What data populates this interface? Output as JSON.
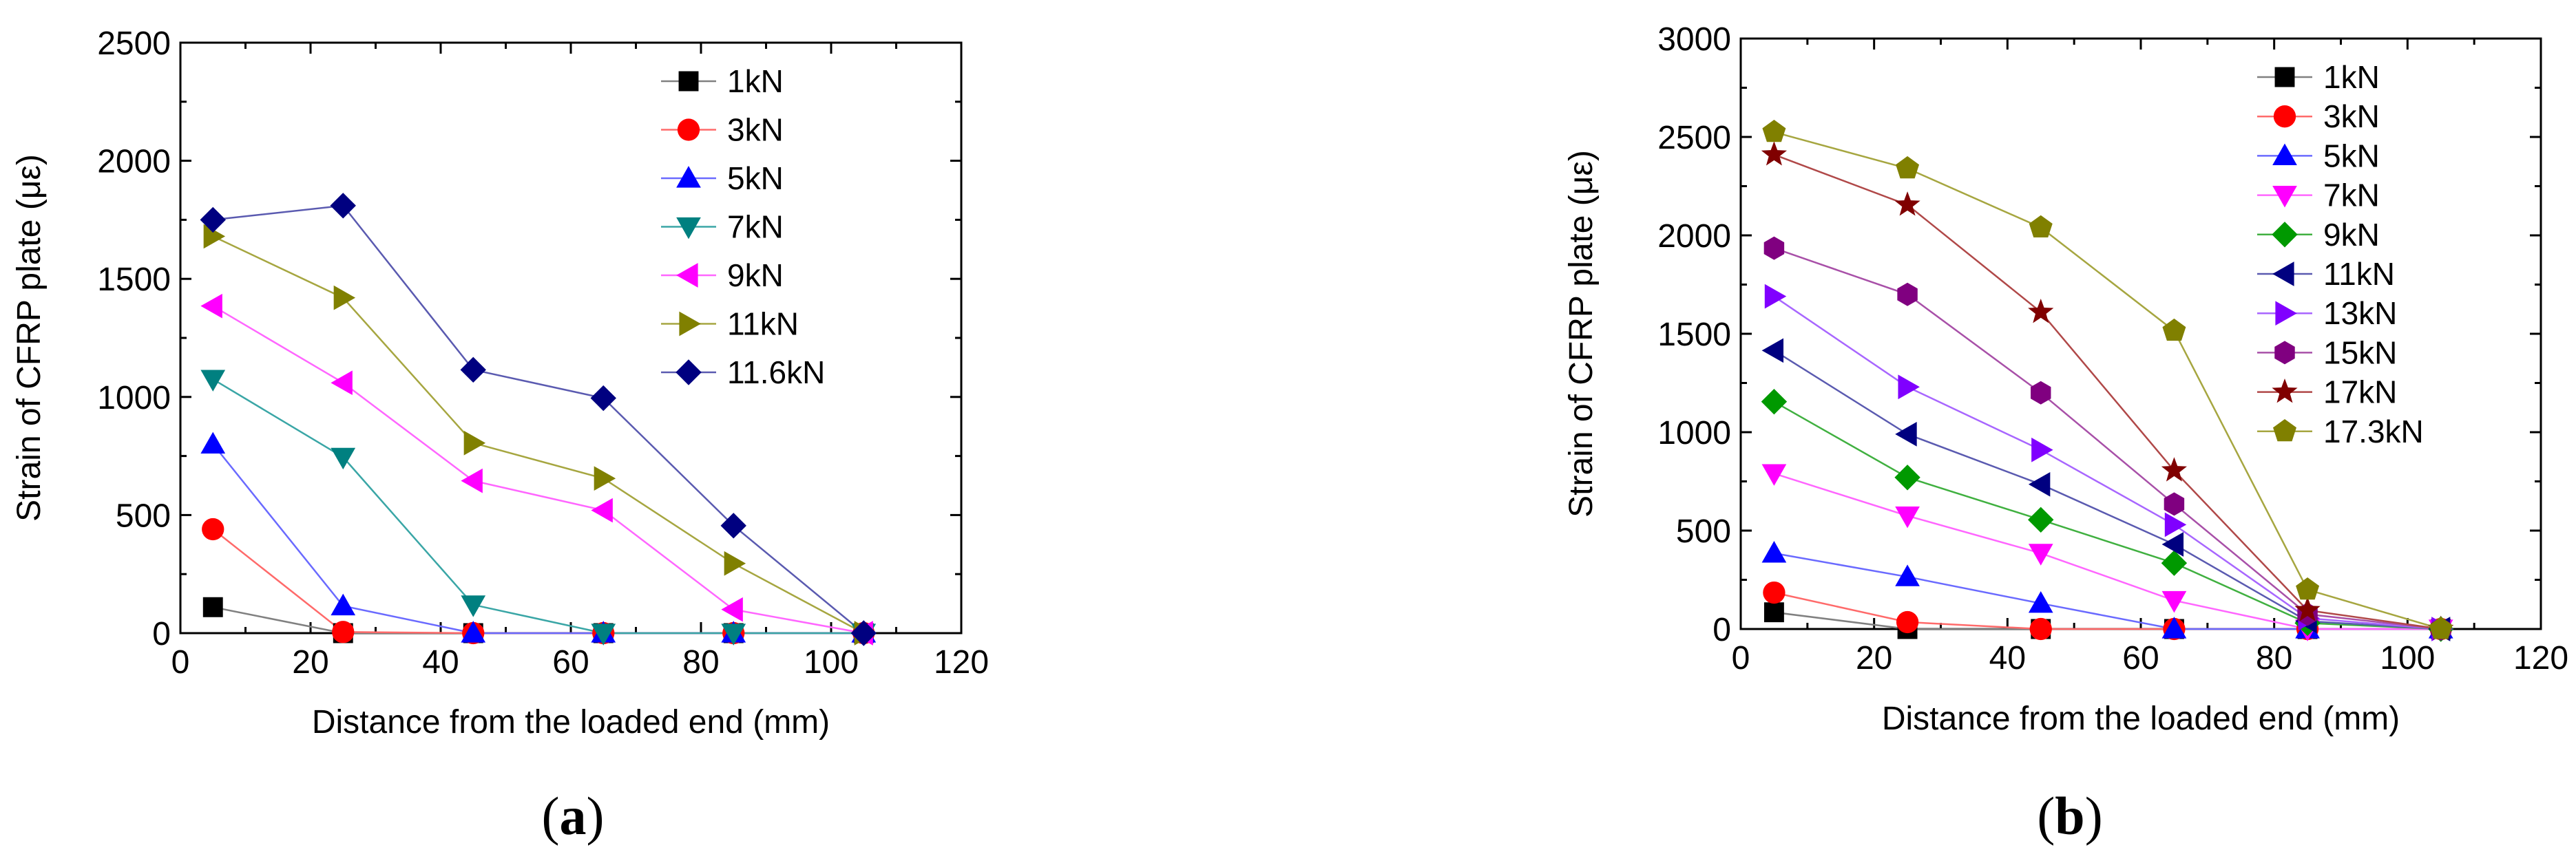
{
  "chart_data": [
    {
      "type": "line",
      "panel_label": "(a)",
      "panel_label_open": "(",
      "panel_label_letter": "a",
      "panel_label_close": ")",
      "xlabel": "Distance from the loaded end (mm)",
      "ylabel": "Strain of CFRP plate (με)",
      "xlim": [
        0,
        120
      ],
      "ylim": [
        0,
        2500
      ],
      "xticks": [
        0,
        20,
        40,
        60,
        80,
        100,
        120
      ],
      "yticks": [
        0,
        500,
        1000,
        1500,
        2000,
        2500
      ],
      "grid": false,
      "legend_position": "top-right",
      "x": [
        5,
        25,
        45,
        65,
        85,
        105
      ],
      "series": [
        {
          "name": "1kN",
          "marker": "square",
          "color": "#000000",
          "line_color": "#808080",
          "values": [
            110,
            0,
            0,
            0,
            0,
            0
          ]
        },
        {
          "name": "3kN",
          "marker": "circle",
          "color": "#ff0000",
          "line_color": "#ff6a6a",
          "values": [
            440,
            5,
            0,
            0,
            0,
            0
          ]
        },
        {
          "name": "5kN",
          "marker": "triangle-up",
          "color": "#0000ff",
          "line_color": "#6a6aff",
          "values": [
            800,
            115,
            0,
            0,
            0,
            0
          ]
        },
        {
          "name": "7kN",
          "marker": "triangle-down",
          "color": "#008080",
          "line_color": "#3aa6a6",
          "values": [
            1075,
            745,
            120,
            0,
            0,
            0
          ]
        },
        {
          "name": "9kN",
          "marker": "triangle-left",
          "color": "#ff00ff",
          "line_color": "#ff66ff",
          "values": [
            1385,
            1060,
            645,
            520,
            100,
            0
          ]
        },
        {
          "name": "11kN",
          "marker": "triangle-right",
          "color": "#808000",
          "line_color": "#a6a640",
          "values": [
            1680,
            1420,
            805,
            655,
            295,
            0
          ]
        },
        {
          "name": "11.6kN",
          "marker": "diamond",
          "color": "#000080",
          "line_color": "#5a5ab0",
          "values": [
            1750,
            1810,
            1115,
            995,
            455,
            0
          ]
        }
      ]
    },
    {
      "type": "line",
      "panel_label": "(b)",
      "panel_label_open": "(",
      "panel_label_letter": "b",
      "panel_label_close": ")",
      "xlabel": "Distance from the loaded end (mm)",
      "ylabel": "Strain of CFRP plate (με)",
      "xlim": [
        0,
        120
      ],
      "ylim": [
        0,
        3000
      ],
      "xticks": [
        0,
        20,
        40,
        60,
        80,
        100,
        120
      ],
      "yticks": [
        0,
        500,
        1000,
        1500,
        2000,
        2500,
        3000
      ],
      "grid": false,
      "legend_position": "top-right",
      "x": [
        5,
        25,
        45,
        65,
        85,
        105
      ],
      "series": [
        {
          "name": "1kN",
          "marker": "square",
          "color": "#000000",
          "line_color": "#808080",
          "values": [
            85,
            0,
            0,
            0,
            0,
            0
          ]
        },
        {
          "name": "3kN",
          "marker": "circle",
          "color": "#ff0000",
          "line_color": "#ff6a6a",
          "values": [
            185,
            35,
            0,
            0,
            0,
            0
          ]
        },
        {
          "name": "5kN",
          "marker": "triangle-up",
          "color": "#0000ff",
          "line_color": "#6a6aff",
          "values": [
            385,
            265,
            130,
            0,
            0,
            0
          ]
        },
        {
          "name": "7kN",
          "marker": "triangle-down",
          "color": "#ff00ff",
          "line_color": "#ff66ff",
          "values": [
            790,
            575,
            385,
            145,
            0,
            0
          ]
        },
        {
          "name": "9kN",
          "marker": "diamond",
          "color": "#009900",
          "line_color": "#40b040",
          "values": [
            1155,
            770,
            555,
            335,
            30,
            0
          ]
        },
        {
          "name": "11kN",
          "marker": "triangle-left",
          "color": "#000080",
          "line_color": "#5a5ab0",
          "values": [
            1415,
            990,
            735,
            430,
            40,
            0
          ]
        },
        {
          "name": "13kN",
          "marker": "triangle-right",
          "color": "#8000ff",
          "line_color": "#a866ff",
          "values": [
            1690,
            1230,
            910,
            530,
            55,
            0
          ]
        },
        {
          "name": "15kN",
          "marker": "hexagon",
          "color": "#800080",
          "line_color": "#a850a8",
          "values": [
            1935,
            1700,
            1200,
            635,
            75,
            0
          ]
        },
        {
          "name": "17kN",
          "marker": "star",
          "color": "#800000",
          "line_color": "#b04848",
          "values": [
            2410,
            2155,
            1610,
            805,
            95,
            0
          ]
        },
        {
          "name": "17.3kN",
          "marker": "pentagon",
          "color": "#808000",
          "line_color": "#a6a640",
          "values": [
            2525,
            2340,
            2040,
            1515,
            200,
            0
          ]
        }
      ]
    }
  ]
}
